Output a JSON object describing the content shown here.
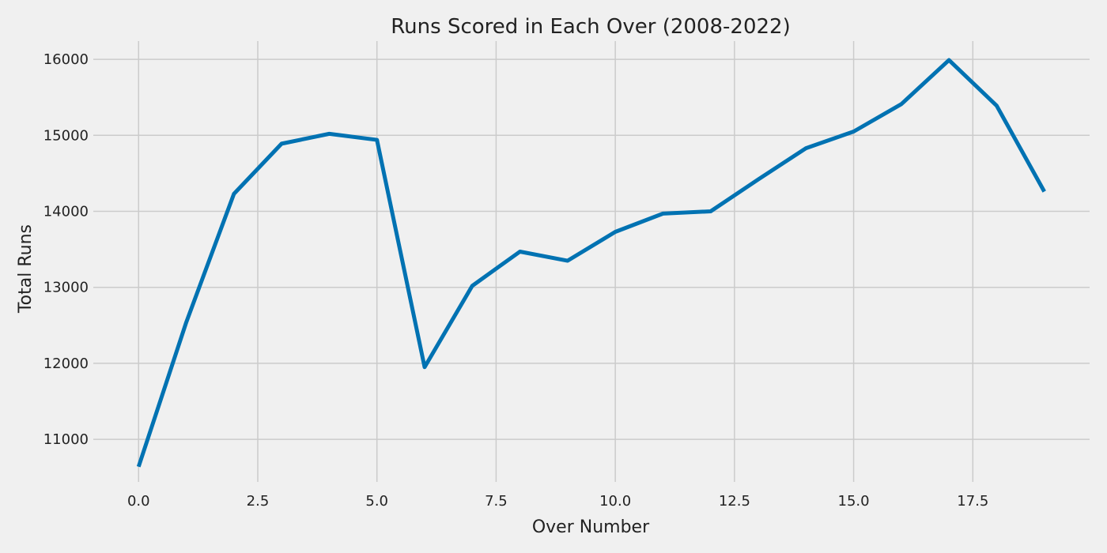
{
  "chart_data": {
    "type": "line",
    "title": "Runs Scored in Each Over (2008-2022)",
    "xlabel": "Over Number",
    "ylabel": "Total Runs",
    "x": [
      0,
      1,
      2,
      3,
      4,
      5,
      6,
      7,
      8,
      9,
      10,
      11,
      12,
      13,
      14,
      15,
      16,
      17,
      18,
      19
    ],
    "series": [
      {
        "values": [
          10640,
          12540,
          14230,
          14890,
          15020,
          14940,
          11950,
          13020,
          13470,
          13350,
          13730,
          13970,
          14000,
          14420,
          14830,
          15050,
          15410,
          15990,
          15390,
          14260
        ]
      }
    ],
    "xlim": [
      -0.95,
      19.95
    ],
    "ylim": [
      10440,
      16240
    ],
    "xticks": [
      0.0,
      2.5,
      5.0,
      7.5,
      10.0,
      12.5,
      15.0,
      17.5
    ],
    "xtick_labels": [
      "0.0",
      "2.5",
      "5.0",
      "7.5",
      "10.0",
      "12.5",
      "15.0",
      "17.5"
    ],
    "yticks": [
      11000,
      12000,
      13000,
      14000,
      15000,
      16000
    ],
    "ytick_labels": [
      "11000",
      "12000",
      "13000",
      "14000",
      "15000",
      "16000"
    ],
    "grid": true,
    "line_color": "#0072b2",
    "background_color": "#f0f0f0"
  }
}
